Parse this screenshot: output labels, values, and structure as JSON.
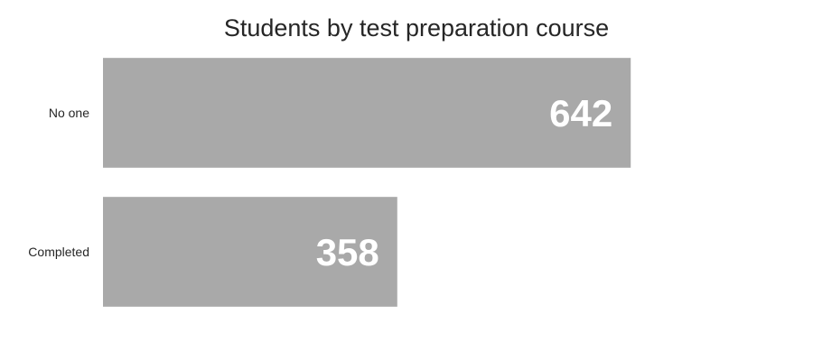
{
  "chart_data": {
    "type": "bar",
    "orientation": "horizontal",
    "title": "Students by test preparation course",
    "xlabel": "",
    "ylabel": "",
    "categories": [
      "No one",
      "Completed"
    ],
    "values": [
      642,
      358
    ],
    "data_labels": [
      "642",
      "358"
    ],
    "xlim": [
      0,
      800
    ],
    "grid": false,
    "legend": "none",
    "colors": {
      "bar": "#a9a9a9",
      "data_label": "#ffffff",
      "text": "#262626",
      "background": "#ffffff"
    }
  }
}
